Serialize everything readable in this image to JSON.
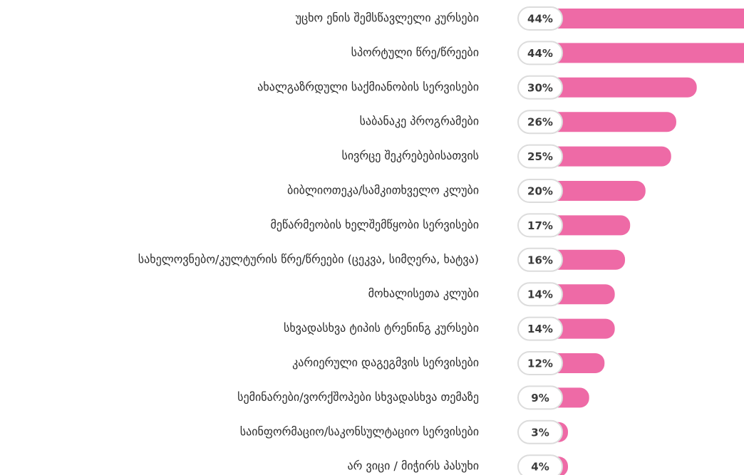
{
  "chart_data": {
    "type": "bar",
    "orientation": "horizontal",
    "color": "#ee6aa6",
    "categories": [
      "უცხო ენის შემსწავლელი კურსები",
      "სპორტული წრე/წრეები",
      "ახალგაზრდული საქმიანობის სერვისები",
      "საბანაკე პროგრამები",
      "სივრცე შეკრებებისათვის",
      "ბიბლიოთეკა/სამკითხველო კლუბი",
      "მეწარმეობის ხელშემწყობი სერვისები",
      "სახელოვნებო/კულტურის წრე/წრეები (ცეკვა, სიმღერა, ხატვა)",
      "მოხალისეთა კლუბი",
      "სხვადასხვა ტიპის ტრენინგ კურსები",
      "კარიერული დაგეგმვის სერვისები",
      "სემინარები/ვორქშოპები სხვადასხვა თემაზე",
      "საინფორმაციო/საკონსულტაციო სერვისები",
      "არ ვიცი / მიჭირს პასუხი"
    ],
    "values": [
      44,
      44,
      30,
      26,
      25,
      20,
      17,
      16,
      14,
      14,
      12,
      9,
      3,
      4
    ],
    "value_labels": [
      "44%",
      "44%",
      "30%",
      "26%",
      "25%",
      "20%",
      "17%",
      "16%",
      "14%",
      "14%",
      "12%",
      "9%",
      "3%",
      "4%"
    ]
  }
}
